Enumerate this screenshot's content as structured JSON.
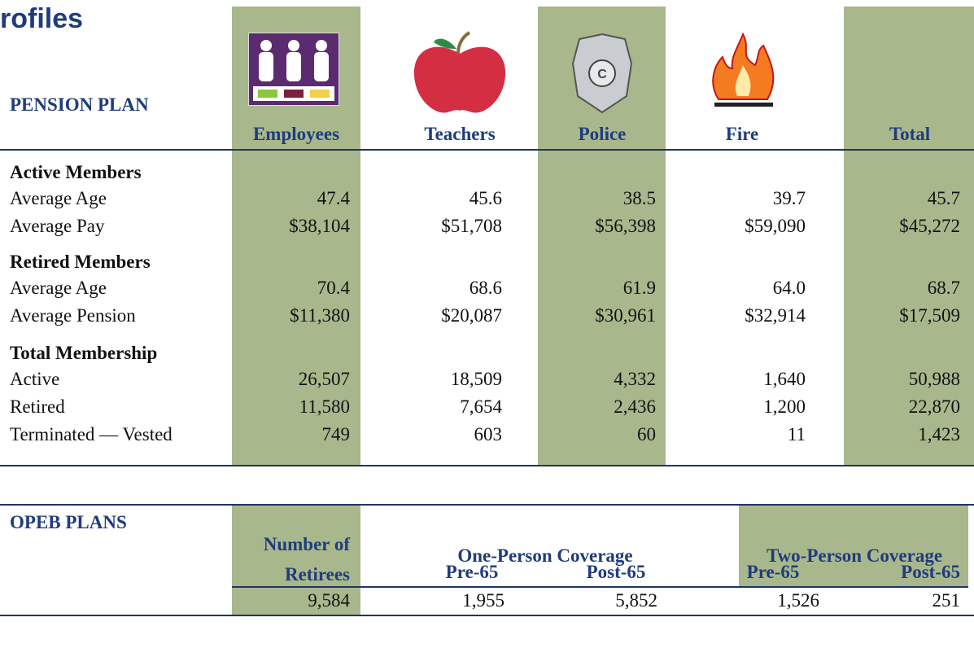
{
  "header": {
    "title": "rofiles"
  },
  "pension": {
    "label": "PENSION PLAN",
    "columns": [
      "Employees",
      "Teachers",
      "Police",
      "Fire",
      "Total"
    ],
    "sections": [
      {
        "title": "Active Members",
        "rows": [
          {
            "label": "Average Age",
            "values": [
              "47.4",
              "45.6",
              "38.5",
              "39.7",
              "45.7"
            ]
          },
          {
            "label": "Average Pay",
            "values": [
              "$38,104",
              "$51,708",
              "$56,398",
              "$59,090",
              "$45,272"
            ]
          }
        ]
      },
      {
        "title": "Retired Members",
        "rows": [
          {
            "label": "Average Age",
            "values": [
              "70.4",
              "68.6",
              "61.9",
              "64.0",
              "68.7"
            ]
          },
          {
            "label": "Average Pension",
            "values": [
              "$11,380",
              "$20,087",
              "$30,961",
              "$32,914",
              "$17,509"
            ]
          }
        ]
      },
      {
        "title": "Total Membership",
        "rows": [
          {
            "label": "Active",
            "values": [
              "26,507",
              "18,509",
              "4,332",
              "1,640",
              "50,988"
            ]
          },
          {
            "label": "Retired",
            "values": [
              "11,580",
              "7,654",
              "2,436",
              "1,200",
              "22,870"
            ]
          },
          {
            "label": "Terminated — Vested",
            "values": [
              "749",
              "603",
              "60",
              "11",
              "1,423"
            ]
          }
        ]
      }
    ]
  },
  "opeb": {
    "label": "OPEB PLANS",
    "group_headers": [
      "One-Person Coverage",
      "Two-Person Coverage"
    ],
    "columns": [
      "Number of Retirees",
      "Pre-65",
      "Post-65",
      "Pre-65",
      "Post-65"
    ],
    "values": [
      "9,584",
      "1,955",
      "5,852",
      "1,526",
      "251"
    ]
  }
}
